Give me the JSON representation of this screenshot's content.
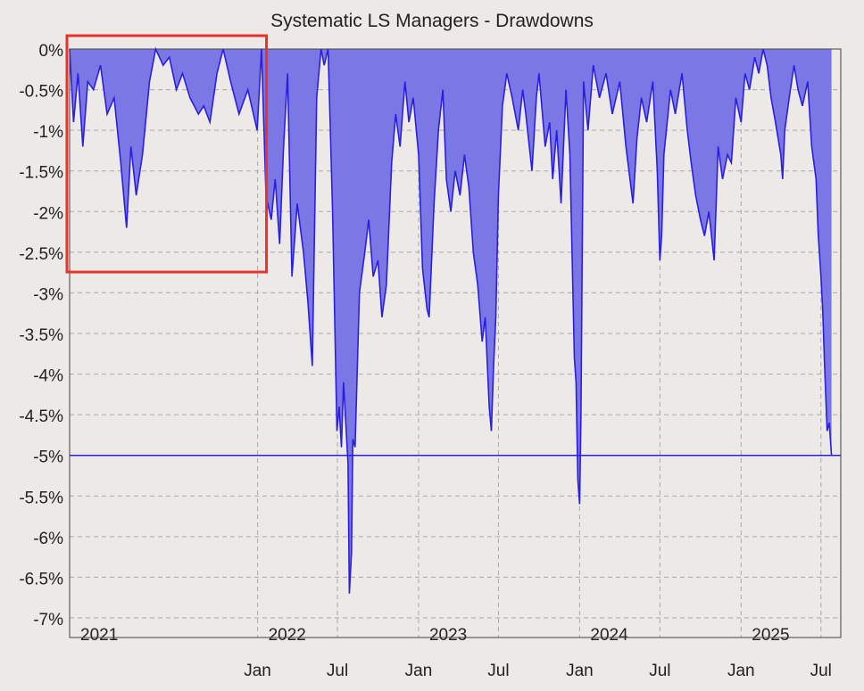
{
  "chart_data": {
    "type": "area",
    "title": "Systematic LS Managers - Drawdowns",
    "xlabel": "",
    "ylabel": "",
    "ylim": [
      -7,
      0
    ],
    "xlim": [
      "2020-11-01",
      "2025-08-15"
    ],
    "grid": true,
    "yticks": [
      {
        "value": 0,
        "label": "0%"
      },
      {
        "value": -0.5,
        "label": "-0.5%"
      },
      {
        "value": -1,
        "label": "-1%"
      },
      {
        "value": -1.5,
        "label": "-1.5%"
      },
      {
        "value": -2,
        "label": "-2%"
      },
      {
        "value": -2.5,
        "label": "-2.5%"
      },
      {
        "value": -3,
        "label": "-3%"
      },
      {
        "value": -3.5,
        "label": "-3.5%"
      },
      {
        "value": -4,
        "label": "-4%"
      },
      {
        "value": -4.5,
        "label": "-4.5%"
      },
      {
        "value": -5,
        "label": "-5%"
      },
      {
        "value": -5.5,
        "label": "-5.5%"
      },
      {
        "value": -6,
        "label": "-6%"
      },
      {
        "value": -6.5,
        "label": "-6.5%"
      },
      {
        "value": -7,
        "label": "-7%"
      }
    ],
    "xticks": [
      {
        "date": "2022-01-01",
        "label": "Jan"
      },
      {
        "date": "2022-07-01",
        "label": "Jul"
      },
      {
        "date": "2023-01-01",
        "label": "Jan"
      },
      {
        "date": "2023-07-01",
        "label": "Jul"
      },
      {
        "date": "2024-01-01",
        "label": "Jan"
      },
      {
        "date": "2024-07-01",
        "label": "Jul"
      },
      {
        "date": "2025-01-01",
        "label": "Jan"
      },
      {
        "date": "2025-07-01",
        "label": "Jul"
      }
    ],
    "year_labels": [
      {
        "date": "2020-11-01",
        "label": "2021"
      },
      {
        "date": "2022-01-01",
        "label": "2022"
      },
      {
        "date": "2023-01-01",
        "label": "2023"
      },
      {
        "date": "2024-01-01",
        "label": "2024"
      },
      {
        "date": "2025-01-01",
        "label": "2025"
      }
    ],
    "reference_line": {
      "value": -5
    },
    "highlight_box": {
      "x": [
        "2020-11-01",
        "2022-01-01"
      ],
      "y": [
        0,
        -2.7
      ],
      "color": "#e8322d"
    },
    "colors": {
      "fill": "#7b78e6",
      "line": "#2a1fe0",
      "grid": "#a9a9a9",
      "plot_bg": "#ece9e6",
      "highlight": "#e8322d"
    },
    "series": [
      {
        "points": [
          [
            "2020-11-01",
            0
          ],
          [
            "2020-11-10",
            -0.9
          ],
          [
            "2020-11-20",
            -0.3
          ],
          [
            "2020-12-01",
            -1.2
          ],
          [
            "2020-12-12",
            -0.4
          ],
          [
            "2020-12-25",
            -0.5
          ],
          [
            "2021-01-10",
            -0.2
          ],
          [
            "2021-01-25",
            -0.8
          ],
          [
            "2021-02-10",
            -0.6
          ],
          [
            "2021-02-25",
            -1.4
          ],
          [
            "2021-03-10",
            -2.2
          ],
          [
            "2021-03-20",
            -1.2
          ],
          [
            "2021-04-01",
            -1.8
          ],
          [
            "2021-04-15",
            -1.3
          ],
          [
            "2021-05-01",
            -0.4
          ],
          [
            "2021-05-15",
            0
          ],
          [
            "2021-06-01",
            -0.2
          ],
          [
            "2021-06-15",
            -0.1
          ],
          [
            "2021-07-01",
            -0.5
          ],
          [
            "2021-07-15",
            -0.3
          ],
          [
            "2021-08-01",
            -0.6
          ],
          [
            "2021-08-20",
            -0.8
          ],
          [
            "2021-09-01",
            -0.7
          ],
          [
            "2021-09-15",
            -0.9
          ],
          [
            "2021-10-01",
            -0.3
          ],
          [
            "2021-10-15",
            0
          ],
          [
            "2021-11-01",
            -0.4
          ],
          [
            "2021-11-20",
            -0.8
          ],
          [
            "2021-12-10",
            -0.5
          ],
          [
            "2021-12-31",
            -1.0
          ],
          [
            "2022-01-10",
            0
          ],
          [
            "2022-01-20",
            -1.8
          ],
          [
            "2022-02-01",
            -2.1
          ],
          [
            "2022-02-10",
            -1.6
          ],
          [
            "2022-02-20",
            -2.4
          ],
          [
            "2022-03-01",
            -1.2
          ],
          [
            "2022-03-10",
            -0.3
          ],
          [
            "2022-03-20",
            -2.8
          ],
          [
            "2022-04-01",
            -1.9
          ],
          [
            "2022-04-15",
            -2.5
          ],
          [
            "2022-04-25",
            -3.1
          ],
          [
            "2022-05-05",
            -3.9
          ],
          [
            "2022-05-15",
            -0.6
          ],
          [
            "2022-05-25",
            0
          ],
          [
            "2022-06-01",
            -0.2
          ],
          [
            "2022-06-10",
            0
          ],
          [
            "2022-06-20",
            -2.0
          ],
          [
            "2022-06-30",
            -4.7
          ],
          [
            "2022-07-05",
            -4.4
          ],
          [
            "2022-07-10",
            -4.9
          ],
          [
            "2022-07-15",
            -4.1
          ],
          [
            "2022-07-20",
            -4.6
          ],
          [
            "2022-07-25",
            -5.1
          ],
          [
            "2022-07-28",
            -6.7
          ],
          [
            "2022-08-02",
            -6.2
          ],
          [
            "2022-08-05",
            -4.8
          ],
          [
            "2022-08-10",
            -4.9
          ],
          [
            "2022-08-20",
            -3.0
          ],
          [
            "2022-09-01",
            -2.5
          ],
          [
            "2022-09-10",
            -2.1
          ],
          [
            "2022-09-20",
            -2.8
          ],
          [
            "2022-10-01",
            -2.6
          ],
          [
            "2022-10-10",
            -3.3
          ],
          [
            "2022-10-20",
            -2.9
          ],
          [
            "2022-11-01",
            -1.4
          ],
          [
            "2022-11-10",
            -0.8
          ],
          [
            "2022-11-20",
            -1.2
          ],
          [
            "2022-12-01",
            -0.4
          ],
          [
            "2022-12-10",
            -0.9
          ],
          [
            "2022-12-20",
            -0.6
          ],
          [
            "2023-01-01",
            -1.3
          ],
          [
            "2023-01-10",
            -2.7
          ],
          [
            "2023-01-20",
            -3.2
          ],
          [
            "2023-01-25",
            -3.3
          ],
          [
            "2023-02-05",
            -1.9
          ],
          [
            "2023-02-15",
            -1.0
          ],
          [
            "2023-02-25",
            -0.5
          ],
          [
            "2023-03-05",
            -1.6
          ],
          [
            "2023-03-15",
            -2.0
          ],
          [
            "2023-03-25",
            -1.5
          ],
          [
            "2023-04-05",
            -1.8
          ],
          [
            "2023-04-15",
            -1.3
          ],
          [
            "2023-04-25",
            -1.7
          ],
          [
            "2023-05-05",
            -2.5
          ],
          [
            "2023-05-15",
            -2.9
          ],
          [
            "2023-05-25",
            -3.6
          ],
          [
            "2023-06-01",
            -3.3
          ],
          [
            "2023-06-10",
            -4.4
          ],
          [
            "2023-06-15",
            -4.7
          ],
          [
            "2023-06-20",
            -3.9
          ],
          [
            "2023-06-25",
            -3.3
          ],
          [
            "2023-07-01",
            -1.8
          ],
          [
            "2023-07-10",
            -0.7
          ],
          [
            "2023-07-20",
            -0.3
          ],
          [
            "2023-08-01",
            -0.6
          ],
          [
            "2023-08-15",
            -1.0
          ],
          [
            "2023-08-25",
            -0.5
          ],
          [
            "2023-09-01",
            -0.8
          ],
          [
            "2023-09-15",
            -1.5
          ],
          [
            "2023-09-25",
            -0.6
          ],
          [
            "2023-10-01",
            -0.3
          ],
          [
            "2023-10-15",
            -1.2
          ],
          [
            "2023-10-25",
            -0.9
          ],
          [
            "2023-11-01",
            -1.6
          ],
          [
            "2023-11-10",
            -1.0
          ],
          [
            "2023-11-20",
            -1.9
          ],
          [
            "2023-12-01",
            -0.5
          ],
          [
            "2023-12-10",
            -1.3
          ],
          [
            "2023-12-20",
            -3.8
          ],
          [
            "2023-12-24",
            -4.1
          ],
          [
            "2023-12-28",
            -5.3
          ],
          [
            "2024-01-01",
            -5.6
          ],
          [
            "2024-01-04",
            -4.5
          ],
          [
            "2024-01-10",
            -0.4
          ],
          [
            "2024-01-20",
            -1.0
          ],
          [
            "2024-02-01",
            -0.2
          ],
          [
            "2024-02-15",
            -0.6
          ],
          [
            "2024-03-01",
            -0.3
          ],
          [
            "2024-03-15",
            -0.8
          ],
          [
            "2024-04-01",
            -0.4
          ],
          [
            "2024-04-15",
            -1.2
          ],
          [
            "2024-05-01",
            -1.9
          ],
          [
            "2024-05-10",
            -1.1
          ],
          [
            "2024-05-20",
            -0.6
          ],
          [
            "2024-06-01",
            -0.9
          ],
          [
            "2024-06-15",
            -0.4
          ],
          [
            "2024-06-25",
            -1.5
          ],
          [
            "2024-07-01",
            -2.6
          ],
          [
            "2024-07-05",
            -2.3
          ],
          [
            "2024-07-10",
            -1.3
          ],
          [
            "2024-07-25",
            -0.5
          ],
          [
            "2024-08-05",
            -0.8
          ],
          [
            "2024-08-20",
            -0.3
          ],
          [
            "2024-09-01",
            -1.0
          ],
          [
            "2024-09-10",
            -1.4
          ],
          [
            "2024-09-20",
            -1.8
          ],
          [
            "2024-10-01",
            -2.1
          ],
          [
            "2024-10-10",
            -2.3
          ],
          [
            "2024-10-20",
            -2.0
          ],
          [
            "2024-11-01",
            -2.6
          ],
          [
            "2024-11-10",
            -1.2
          ],
          [
            "2024-11-20",
            -1.6
          ],
          [
            "2024-12-01",
            -1.3
          ],
          [
            "2024-12-10",
            -1.4
          ],
          [
            "2024-12-20",
            -0.6
          ],
          [
            "2025-01-01",
            -0.9
          ],
          [
            "2025-01-10",
            -0.3
          ],
          [
            "2025-01-20",
            -0.5
          ],
          [
            "2025-02-01",
            -0.1
          ],
          [
            "2025-02-10",
            -0.3
          ],
          [
            "2025-02-20",
            0
          ],
          [
            "2025-03-01",
            -0.2
          ],
          [
            "2025-03-10",
            -0.6
          ],
          [
            "2025-03-20",
            -0.9
          ],
          [
            "2025-04-01",
            -1.3
          ],
          [
            "2025-04-05",
            -1.6
          ],
          [
            "2025-04-10",
            -1.0
          ],
          [
            "2025-04-20",
            -0.6
          ],
          [
            "2025-05-01",
            -0.2
          ],
          [
            "2025-05-10",
            -0.5
          ],
          [
            "2025-05-20",
            -0.7
          ],
          [
            "2025-06-01",
            -0.4
          ],
          [
            "2025-06-10",
            -1.2
          ],
          [
            "2025-06-20",
            -1.6
          ],
          [
            "2025-06-25",
            -2.3
          ],
          [
            "2025-07-01",
            -2.8
          ],
          [
            "2025-07-05",
            -3.2
          ],
          [
            "2025-07-10",
            -4.0
          ],
          [
            "2025-07-15",
            -4.7
          ],
          [
            "2025-07-20",
            -4.6
          ],
          [
            "2025-07-25",
            -5.0
          ]
        ]
      }
    ]
  }
}
